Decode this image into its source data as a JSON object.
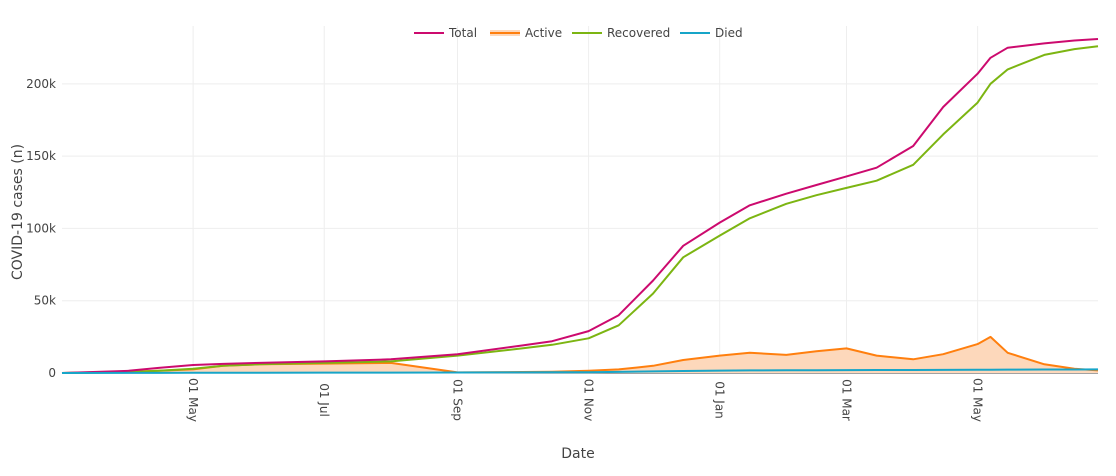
{
  "chart_data": {
    "type": "line",
    "xlabel": "Date",
    "ylabel": "COVID-19 cases (n)",
    "grid": true,
    "legend_position": "top-center",
    "x_range": [
      "2020-03-01",
      "2021-06-26"
    ],
    "ylim": [
      0,
      240000
    ],
    "y_ticks": [
      0,
      50000,
      100000,
      150000,
      200000
    ],
    "y_tick_labels": [
      "0",
      "50k",
      "100k",
      "150k",
      "200k"
    ],
    "x_ticks": [
      "2020-05-01",
      "2020-07-01",
      "2020-09-01",
      "2020-11-01",
      "2021-01-01",
      "2021-03-01",
      "2021-05-01"
    ],
    "x_tick_labels": [
      "01 May",
      "01 Jul",
      "01 Sep",
      "01 Nov",
      "01 Jan",
      "01 Mar",
      "01 May"
    ],
    "x": [
      "2020-03-01",
      "2020-04-01",
      "2020-04-15",
      "2020-05-01",
      "2020-05-15",
      "2020-06-01",
      "2020-07-01",
      "2020-08-01",
      "2020-09-01",
      "2020-10-01",
      "2020-10-15",
      "2020-11-01",
      "2020-11-15",
      "2020-12-01",
      "2020-12-15",
      "2021-01-01",
      "2021-01-15",
      "2021-02-01",
      "2021-02-15",
      "2021-03-01",
      "2021-03-15",
      "2021-04-01",
      "2021-04-15",
      "2021-05-01",
      "2021-05-07",
      "2021-05-15",
      "2021-06-01",
      "2021-06-15",
      "2021-06-26"
    ],
    "series": [
      {
        "name": "Total",
        "color": "#cc0a6e",
        "values": [
          0,
          1500,
          3500,
          5500,
          6300,
          7000,
          8000,
          9500,
          13000,
          19000,
          22000,
          29000,
          40000,
          64000,
          88000,
          104000,
          116000,
          124000,
          130000,
          136000,
          142000,
          157000,
          184000,
          207000,
          218000,
          225000,
          228000,
          230000,
          231000
        ]
      },
      {
        "name": "Active",
        "color": "#ff7f0e",
        "fill": "#fdd8bb",
        "values": [
          0,
          1000,
          1500,
          2500,
          5000,
          6000,
          6500,
          7000,
          400,
          700,
          900,
          1500,
          2500,
          5000,
          9000,
          12000,
          14000,
          12500,
          15000,
          17000,
          12000,
          9500,
          13000,
          20000,
          25000,
          14000,
          6000,
          3000,
          1800
        ]
      },
      {
        "name": "Recovered",
        "color": "#7cb512",
        "values": [
          0,
          500,
          1500,
          3000,
          5000,
          6000,
          7000,
          8000,
          12000,
          17000,
          19500,
          24000,
          33000,
          55000,
          80000,
          95000,
          107000,
          117000,
          123000,
          128000,
          133000,
          144000,
          165000,
          187000,
          200000,
          210000,
          220000,
          224000,
          226000
        ]
      },
      {
        "name": "Died",
        "color": "#17a5c8",
        "values": [
          0,
          50,
          100,
          150,
          180,
          200,
          250,
          280,
          320,
          400,
          450,
          550,
          750,
          1100,
          1400,
          1650,
          1800,
          1900,
          1950,
          2000,
          2050,
          2100,
          2150,
          2250,
          2300,
          2350,
          2400,
          2450,
          2500
        ]
      }
    ]
  }
}
